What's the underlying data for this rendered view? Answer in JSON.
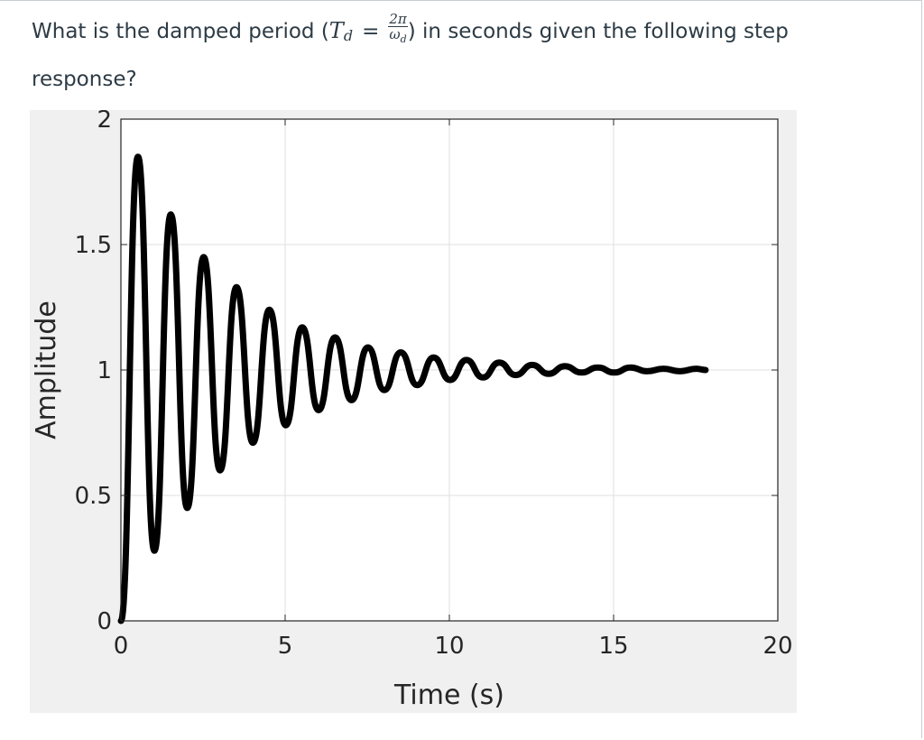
{
  "question": {
    "before": "What is the damped period (",
    "symbol_T": "T",
    "symbol_d": "d",
    "equals": "=",
    "frac_num": "2π",
    "frac_den_w": "ω",
    "frac_den_d": "d",
    "after": ") in seconds given the following step response?"
  },
  "chart_data": {
    "type": "line",
    "title": "",
    "xlabel": "Time (s)",
    "ylabel": "Amplitude",
    "xlim": [
      0,
      20
    ],
    "ylim": [
      0,
      2
    ],
    "xticks": [
      0,
      5,
      10,
      15,
      20
    ],
    "yticks": [
      0,
      0.5,
      1,
      1.5,
      2
    ],
    "xtick_labels": [
      "0",
      "5",
      "10",
      "15",
      "20"
    ],
    "ytick_labels": [
      "0",
      "0.5",
      "1",
      "1.5",
      "2"
    ],
    "grid": true,
    "legend": "none",
    "series_color": "#000000",
    "series": [
      {
        "x": [
          0,
          0.52,
          1.02,
          1.52,
          2.02,
          2.52,
          3.02,
          3.52,
          4.02,
          4.52,
          5.02,
          5.52,
          6.02,
          6.52,
          7.02,
          7.52,
          8.02,
          8.52,
          9.02,
          9.52,
          10.02,
          10.52,
          11.02,
          11.52,
          12.02,
          12.52,
          13.02,
          13.52,
          14.02,
          14.52,
          15.02,
          15.52,
          16.02,
          16.52,
          17.02,
          17.52,
          17.8
        ],
        "y": [
          0,
          1.85,
          0.28,
          1.62,
          0.45,
          1.45,
          0.6,
          1.33,
          0.71,
          1.24,
          0.78,
          1.17,
          0.84,
          1.13,
          0.88,
          1.09,
          0.92,
          1.07,
          0.94,
          1.05,
          0.96,
          1.04,
          0.97,
          1.03,
          0.98,
          1.02,
          0.985,
          1.015,
          0.99,
          1.01,
          0.99,
          1.01,
          0.995,
          1.005,
          0.995,
          1.005,
          1.0
        ]
      }
    ]
  }
}
